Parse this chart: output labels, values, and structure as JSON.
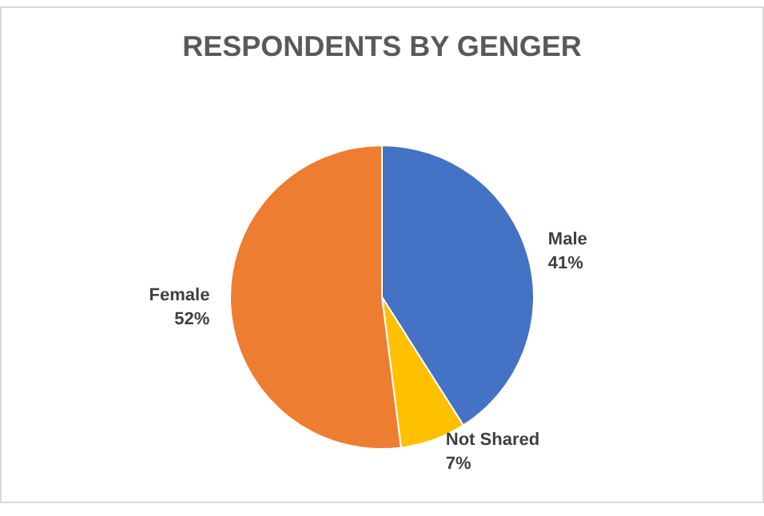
{
  "chart_data": {
    "type": "pie",
    "title": "RESPONDENTS BY GENGER",
    "categories": [
      "Male",
      "Not Shared",
      "Female"
    ],
    "values": [
      41,
      7,
      52
    ],
    "colors": [
      "#4472c4",
      "#ffc000",
      "#ed7d31"
    ],
    "value_labels": [
      "41%",
      "7%",
      "52%"
    ],
    "legend": false
  }
}
